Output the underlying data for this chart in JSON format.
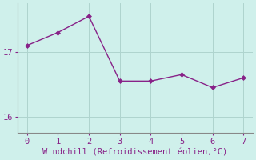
{
  "x": [
    0,
    1,
    2,
    3,
    4,
    5,
    6,
    7
  ],
  "y": [
    17.1,
    17.3,
    17.55,
    16.55,
    16.55,
    16.65,
    16.45,
    16.6
  ],
  "line_color": "#882288",
  "marker": "D",
  "marker_size": 3,
  "xlabel": "Windchill (Refroidissement éolien,°C)",
  "xlabel_fontsize": 7.5,
  "bg_color": "#cff0eb",
  "grid_color": "#aed4ce",
  "tick_color": "#555555",
  "spine_color": "#888888",
  "yticks": [
    16,
    17
  ],
  "xticks": [
    0,
    1,
    2,
    3,
    4,
    5,
    6,
    7
  ],
  "ylim": [
    15.75,
    17.75
  ],
  "xlim": [
    -0.3,
    7.3
  ]
}
